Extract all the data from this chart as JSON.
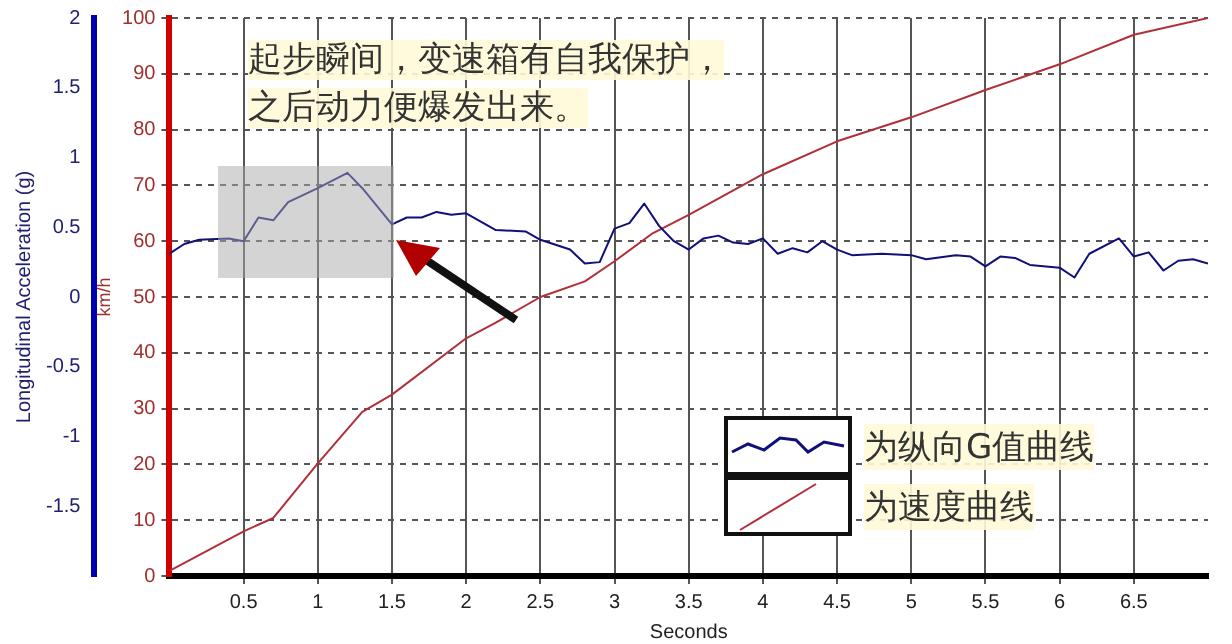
{
  "chart_data": {
    "type": "line",
    "xlabel": "Seconds",
    "ylabel": "km/h",
    "y2label": "Longitudinal Acceleration (g)",
    "annotations": [
      "起步瞬间，变速箱有自我保护，",
      "之后动力便爆发出来。"
    ],
    "xlim": [
      0,
      7
    ],
    "xticks": [
      0.5,
      1,
      1.5,
      2,
      2.5,
      3,
      3.5,
      4,
      4.5,
      5,
      5.5,
      6,
      6.5
    ],
    "ylim": [
      0,
      100
    ],
    "yticks": [
      0,
      10,
      20,
      30,
      40,
      50,
      60,
      70,
      80,
      90,
      100
    ],
    "y2lim": [
      -2,
      2
    ],
    "y2ticks": [
      -1.5,
      -1,
      -0.5,
      0,
      0.5,
      1,
      1.5,
      2
    ],
    "grid": true,
    "legend": "bottom right",
    "marker": "none",
    "series": [
      {
        "name": "为纵向G值曲线",
        "color": "#10107a",
        "axis": "y2",
        "x": [
          0,
          0.1,
          0.2,
          0.4,
          0.5,
          0.6,
          0.7,
          0.8,
          1.0,
          1.2,
          1.3,
          1.5,
          1.6,
          1.7,
          1.8,
          1.9,
          2.0,
          2.2,
          2.4,
          2.5,
          2.7,
          2.8,
          2.9,
          3.0,
          3.1,
          3.2,
          3.3,
          3.4,
          3.5,
          3.6,
          3.7,
          3.8,
          3.9,
          4.0,
          4.1,
          4.2,
          4.3,
          4.4,
          4.5,
          4.6,
          4.8,
          5.0,
          5.1,
          5.3,
          5.4,
          5.5,
          5.6,
          5.7,
          5.8,
          6.0,
          6.1,
          6.2,
          6.4,
          6.5,
          6.6,
          6.7,
          6.8,
          6.9,
          7.0
        ],
        "values": [
          0.31,
          0.38,
          0.41,
          0.42,
          0.4,
          0.57,
          0.55,
          0.68,
          0.78,
          0.89,
          0.78,
          0.52,
          0.57,
          0.57,
          0.61,
          0.59,
          0.6,
          0.48,
          0.47,
          0.41,
          0.34,
          0.24,
          0.25,
          0.49,
          0.53,
          0.67,
          0.51,
          0.4,
          0.34,
          0.42,
          0.44,
          0.39,
          0.38,
          0.42,
          0.31,
          0.35,
          0.32,
          0.4,
          0.34,
          0.3,
          0.31,
          0.3,
          0.27,
          0.3,
          0.29,
          0.22,
          0.29,
          0.28,
          0.23,
          0.21,
          0.14,
          0.31,
          0.42,
          0.29,
          0.32,
          0.19,
          0.26,
          0.27,
          0.24
        ]
      },
      {
        "name": "为速度曲线",
        "color": "#b0303a",
        "axis": "y",
        "x": [
          0,
          0.5,
          0.7,
          1.0,
          1.3,
          1.5,
          2.0,
          2.2,
          2.5,
          2.8,
          3.0,
          3.25,
          3.5,
          4.0,
          4.5,
          5.0,
          5.5,
          6.0,
          6.5,
          7.0
        ],
        "values": [
          0.9,
          8,
          10.4,
          20.2,
          29.4,
          32.5,
          42.6,
          45.4,
          50,
          52.8,
          56.4,
          61.3,
          64.7,
          72,
          77.9,
          82.2,
          87.1,
          91.7,
          97,
          100
        ]
      }
    ]
  }
}
